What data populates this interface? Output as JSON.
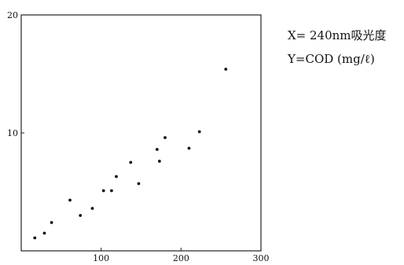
{
  "chart_data": {
    "type": "scatter",
    "title": "",
    "xlabel": "",
    "ylabel": "",
    "xlim": [
      0,
      300
    ],
    "ylim": [
      0,
      20
    ],
    "grid": false,
    "x_ticks": [
      {
        "value": 100,
        "label": "100"
      },
      {
        "value": 200,
        "label": "200"
      },
      {
        "value": 300,
        "label": "300"
      }
    ],
    "y_ticks": [
      {
        "value": 10,
        "label": "10"
      },
      {
        "value": 20,
        "label": "20"
      }
    ],
    "annotations": [
      "X= 240nm吸光度",
      "Y=COD (mg/ℓ)"
    ],
    "points": [
      {
        "x": 17,
        "y": 1.1
      },
      {
        "x": 29,
        "y": 1.5
      },
      {
        "x": 38,
        "y": 2.4
      },
      {
        "x": 61,
        "y": 4.3
      },
      {
        "x": 74,
        "y": 3.0
      },
      {
        "x": 89,
        "y": 3.6
      },
      {
        "x": 103,
        "y": 5.1
      },
      {
        "x": 113,
        "y": 5.1
      },
      {
        "x": 119,
        "y": 6.3
      },
      {
        "x": 137,
        "y": 7.5
      },
      {
        "x": 147,
        "y": 5.7
      },
      {
        "x": 170,
        "y": 8.6
      },
      {
        "x": 173,
        "y": 7.6
      },
      {
        "x": 180,
        "y": 9.6
      },
      {
        "x": 210,
        "y": 8.7
      },
      {
        "x": 223,
        "y": 10.1
      },
      {
        "x": 256,
        "y": 15.4
      }
    ]
  },
  "colors": {
    "axis": "#222222",
    "point": "#111111"
  }
}
